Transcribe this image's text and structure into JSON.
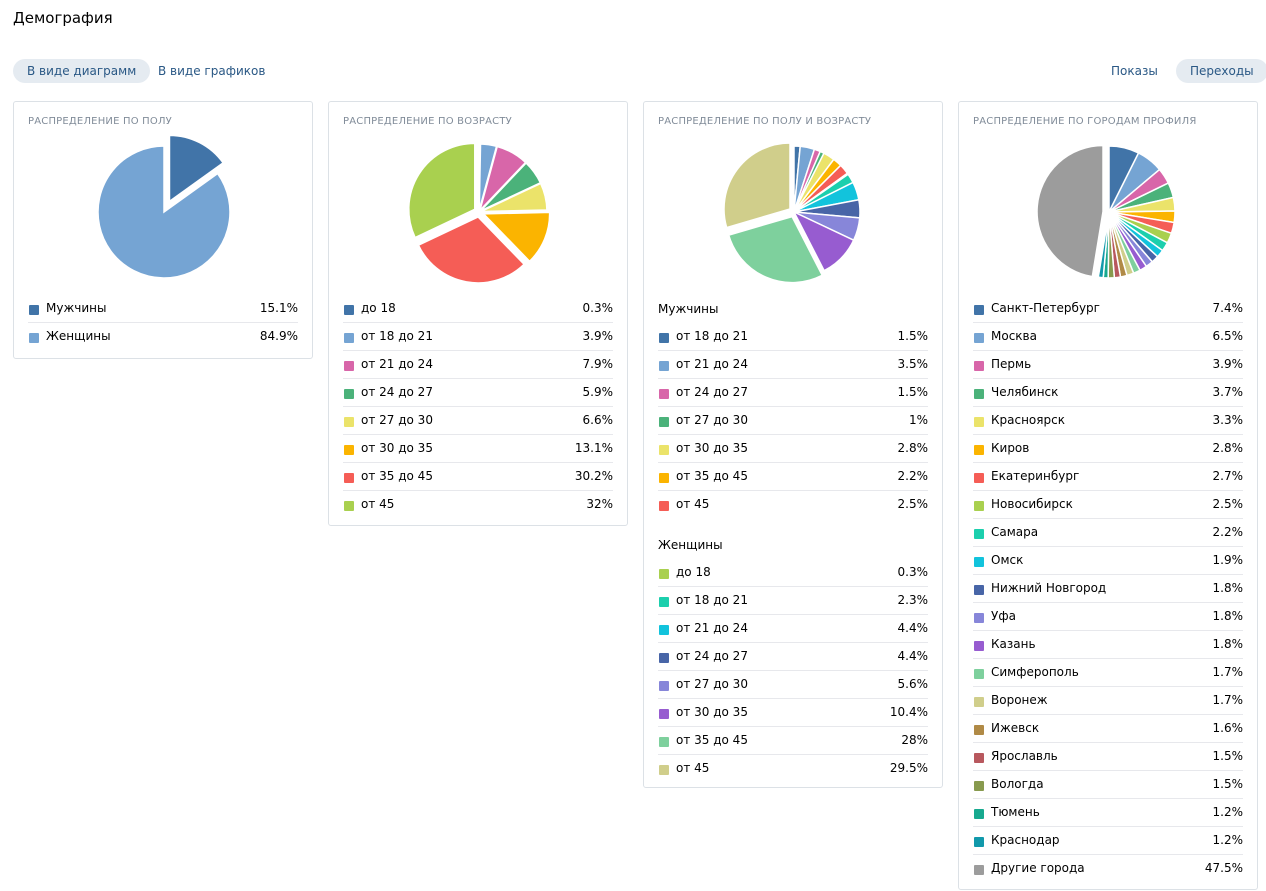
{
  "page": {
    "title": "Демография"
  },
  "toolbar": {
    "view_diagrams": "В виде диаграмм",
    "view_graphs": "В виде графиков",
    "impressions": "Показы",
    "transitions": "Переходы"
  },
  "chart_data": [
    {
      "type": "pie",
      "title": "РАСПРЕДЕЛЕНИЕ ПО ПОЛУ",
      "slices": [
        {
          "label": "Мужчины",
          "value": 15.1,
          "display": "15.1%",
          "color": "#4174a8"
        },
        {
          "label": "Женщины",
          "value": 84.9,
          "display": "84.9%",
          "color": "#75a4d3"
        }
      ]
    },
    {
      "type": "pie",
      "title": "РАСПРЕДЕЛЕНИЕ ПО ВОЗРАСТУ",
      "slices": [
        {
          "label": "до 18",
          "value": 0.3,
          "display": "0.3%",
          "color": "#4174a8"
        },
        {
          "label": "от 18 до 21",
          "value": 3.9,
          "display": "3.9%",
          "color": "#75a4d3"
        },
        {
          "label": "от 21 до 24",
          "value": 7.9,
          "display": "7.9%",
          "color": "#d866a9"
        },
        {
          "label": "от 24 до 27",
          "value": 5.9,
          "display": "5.9%",
          "color": "#4bb27a"
        },
        {
          "label": "от 27 до 30",
          "value": 6.6,
          "display": "6.6%",
          "color": "#ebe36a"
        },
        {
          "label": "от 30 до 35",
          "value": 13.1,
          "display": "13.1%",
          "color": "#fbb400"
        },
        {
          "label": "от 35 до 45",
          "value": 30.2,
          "display": "30.2%",
          "color": "#f55d56"
        },
        {
          "label": "от 45",
          "value": 32,
          "display": "32%",
          "color": "#a9d04f"
        }
      ]
    },
    {
      "type": "pie",
      "title": "РАСПРЕДЕЛЕНИЕ ПО ПОЛУ И ВОЗРАСТУ",
      "groups": [
        {
          "name": "Мужчины",
          "slices": [
            {
              "label": "от 18 до 21",
              "value": 1.5,
              "display": "1.5%",
              "color": "#4174a8"
            },
            {
              "label": "от 21 до 24",
              "value": 3.5,
              "display": "3.5%",
              "color": "#75a4d3"
            },
            {
              "label": "от 24 до 27",
              "value": 1.5,
              "display": "1.5%",
              "color": "#d866a9"
            },
            {
              "label": "от 27 до 30",
              "value": 1,
              "display": "1%",
              "color": "#4bb27a"
            },
            {
              "label": "от 30 до 35",
              "value": 2.8,
              "display": "2.8%",
              "color": "#ebe36a"
            },
            {
              "label": "от 35 до 45",
              "value": 2.2,
              "display": "2.2%",
              "color": "#fbb400"
            },
            {
              "label": "от 45",
              "value": 2.5,
              "display": "2.5%",
              "color": "#f55d56"
            }
          ]
        },
        {
          "name": "Женщины",
          "slices": [
            {
              "label": "до 18",
              "value": 0.3,
              "display": "0.3%",
              "color": "#a9d04f"
            },
            {
              "label": "от 18 до 21",
              "value": 2.3,
              "display": "2.3%",
              "color": "#1ccfad"
            },
            {
              "label": "от 21 до 24",
              "value": 4.4,
              "display": "4.4%",
              "color": "#12c3dc"
            },
            {
              "label": "от 24 до 27",
              "value": 4.4,
              "display": "4.4%",
              "color": "#4865a7"
            },
            {
              "label": "от 27 до 30",
              "value": 5.6,
              "display": "5.6%",
              "color": "#8786d9"
            },
            {
              "label": "от 30 до 35",
              "value": 10.4,
              "display": "10.4%",
              "color": "#975cd0"
            },
            {
              "label": "от 35 до 45",
              "value": 28,
              "display": "28%",
              "color": "#7ed09d"
            },
            {
              "label": "от 45",
              "value": 29.5,
              "display": "29.5%",
              "color": "#d0ce8b"
            }
          ]
        }
      ]
    },
    {
      "type": "pie",
      "title": "РАСПРЕДЕЛЕНИЕ ПО ГОРОДАМ ПРОФИЛЯ",
      "slices": [
        {
          "label": "Санкт-Петербург",
          "value": 7.4,
          "display": "7.4%",
          "color": "#4174a8"
        },
        {
          "label": "Москва",
          "value": 6.5,
          "display": "6.5%",
          "color": "#75a4d3"
        },
        {
          "label": "Пермь",
          "value": 3.9,
          "display": "3.9%",
          "color": "#d866a9"
        },
        {
          "label": "Челябинск",
          "value": 3.7,
          "display": "3.7%",
          "color": "#4bb27a"
        },
        {
          "label": "Красноярск",
          "value": 3.3,
          "display": "3.3%",
          "color": "#ebe36a"
        },
        {
          "label": "Киров",
          "value": 2.8,
          "display": "2.8%",
          "color": "#fbb400"
        },
        {
          "label": "Екатеринбург",
          "value": 2.7,
          "display": "2.7%",
          "color": "#f55d56"
        },
        {
          "label": "Новосибирск",
          "value": 2.5,
          "display": "2.5%",
          "color": "#a9d04f"
        },
        {
          "label": "Самара",
          "value": 2.2,
          "display": "2.2%",
          "color": "#1ccfad"
        },
        {
          "label": "Омск",
          "value": 1.9,
          "display": "1.9%",
          "color": "#12c3dc"
        },
        {
          "label": "Нижний Новгород",
          "value": 1.8,
          "display": "1.8%",
          "color": "#4865a7"
        },
        {
          "label": "Уфа",
          "value": 1.8,
          "display": "1.8%",
          "color": "#8786d9"
        },
        {
          "label": "Казань",
          "value": 1.8,
          "display": "1.8%",
          "color": "#975cd0"
        },
        {
          "label": "Симферополь",
          "value": 1.7,
          "display": "1.7%",
          "color": "#7ed09d"
        },
        {
          "label": "Воронеж",
          "value": 1.7,
          "display": "1.7%",
          "color": "#d0ce8b"
        },
        {
          "label": "Ижевск",
          "value": 1.6,
          "display": "1.6%",
          "color": "#b08a46"
        },
        {
          "label": "Ярославль",
          "value": 1.5,
          "display": "1.5%",
          "color": "#b8585e"
        },
        {
          "label": "Вологда",
          "value": 1.5,
          "display": "1.5%",
          "color": "#889a4e"
        },
        {
          "label": "Тюмень",
          "value": 1.2,
          "display": "1.2%",
          "color": "#17a98f"
        },
        {
          "label": "Краснодар",
          "value": 1.2,
          "display": "1.2%",
          "color": "#1199ab"
        },
        {
          "label": "Другие города",
          "value": 47.5,
          "display": "47.5%",
          "color": "#9c9c9c"
        }
      ]
    }
  ]
}
